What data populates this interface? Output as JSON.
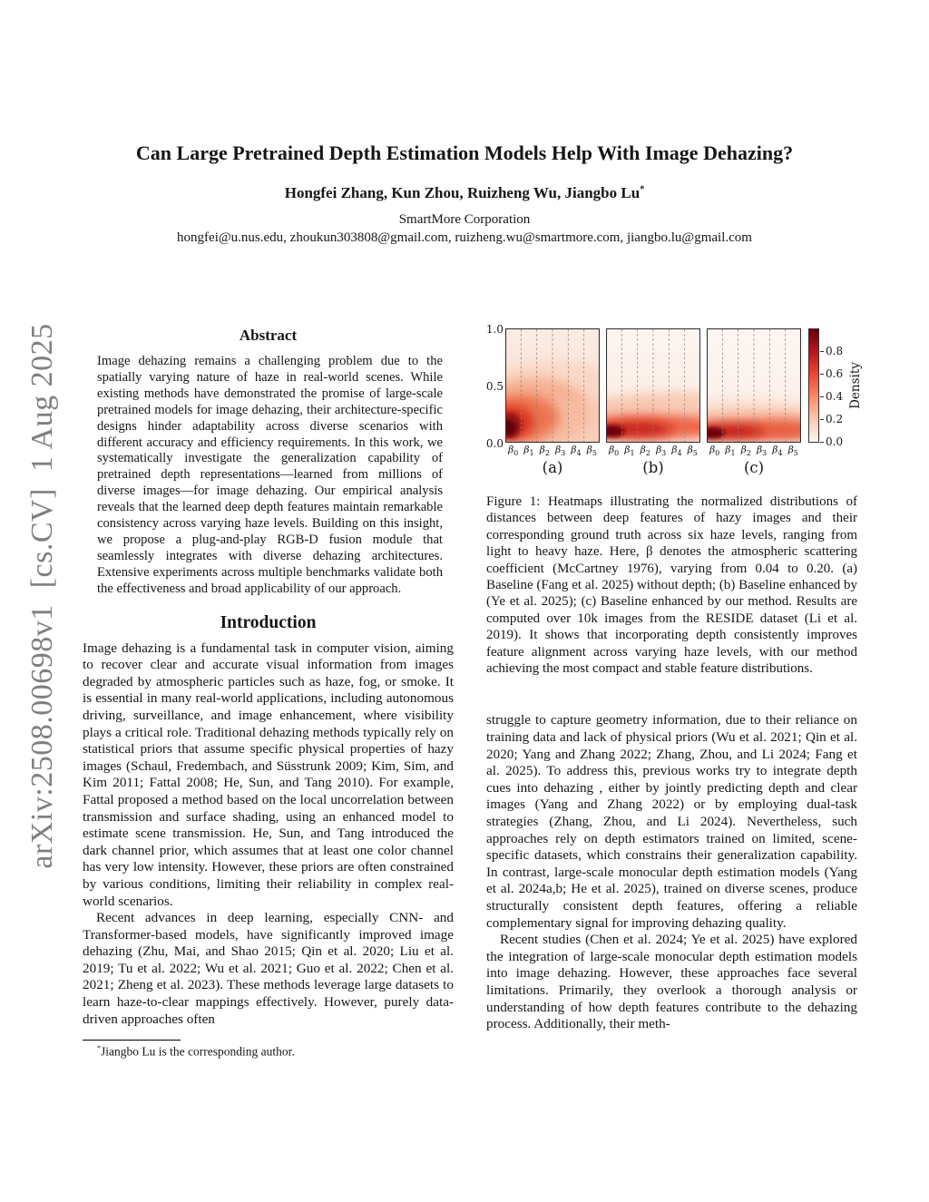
{
  "arxiv_stamp": "arXiv:2508.00698v1  [cs.CV]  1 Aug 2025",
  "header": {
    "title": "Can Large Pretrained Depth Estimation Models Help With Image Dehazing?",
    "authors": "Hongfei Zhang, Kun Zhou, Ruizheng Wu, Jiangbo Lu",
    "authors_mark": "*",
    "affiliation": "SmartMore Corporation",
    "emails": "hongfei@u.nus.edu, zhoukun303808@gmail.com, ruizheng.wu@smartmore.com, jiangbo.lu@gmail.com"
  },
  "abstract": {
    "heading": "Abstract",
    "text": "Image dehazing remains a challenging problem due to the spatially varying nature of haze in real-world scenes. While existing methods have demonstrated the promise of large-scale pretrained models for image dehazing, their architecture-specific designs hinder adaptability across diverse scenarios with different accuracy and efficiency requirements. In this work, we systematically investigate the generalization capability of pretrained depth representations—learned from millions of diverse images—for image dehazing. Our empirical analysis reveals that the learned deep depth features maintain remarkable consistency across varying haze levels. Building on this insight, we propose a plug-and-play RGB-D fusion module that seamlessly integrates with diverse dehazing architectures. Extensive experiments across multiple benchmarks validate both the effectiveness and broad applicability of our approach."
  },
  "introduction": {
    "heading": "Introduction",
    "paragraphs": [
      "Image dehazing is a fundamental task in computer vision, aiming to recover clear and accurate visual information from images degraded by atmospheric particles such as haze, fog, or smoke. It is essential in many real-world applications, including autonomous driving, surveillance, and image enhancement, where visibility plays a critical role. Traditional dehazing methods typically rely on statistical priors that assume specific physical properties of hazy images (Schaul, Fredembach, and Süsstrunk 2009; Kim, Sim, and Kim 2011; Fattal 2008; He, Sun, and Tang 2010). For example, Fattal proposed a method based on the local uncorrelation between transmission and surface shading, using an enhanced model to estimate scene transmission. He, Sun, and Tang introduced the dark channel prior, which assumes that at least one color channel has very low intensity. However, these priors are often constrained by various conditions, limiting their reliability in complex real-world scenarios.",
      "Recent advances in deep learning, especially CNN- and Transformer-based models, have significantly improved image dehazing (Zhu, Mai, and Shao 2015; Qin et al. 2020; Liu et al. 2019; Tu et al. 2022; Wu et al. 2021; Guo et al. 2022; Chen et al. 2021; Zheng et al. 2023). These methods leverage large datasets to learn haze-to-clear mappings effectively. However, purely data-driven approaches often"
    ]
  },
  "footnote": {
    "marker": "*",
    "text": "Jiangbo Lu is the corresponding author."
  },
  "figure": {
    "caption": "Figure 1: Heatmaps illustrating the normalized distributions of distances between deep features of hazy images and their corresponding ground truth across six haze levels, ranging from light to heavy haze. Here, β denotes the atmospheric scattering coefficient (McCartney 1976), varying from 0.04 to 0.20. (a) Baseline (Fang et al. 2025) without depth; (b) Baseline enhanced by (Ye et al. 2025); (c) Baseline enhanced by our method. Results are computed over 10k images from the RESIDE dataset (Li et al. 2019). It shows that incorporating depth consistently improves feature alignment across varying haze levels, with our method achieving the most compact and stable feature distributions."
  },
  "right_column": {
    "paragraphs": [
      "struggle to capture geometry information, due to their reliance on training data and lack of physical priors (Wu et al. 2021; Qin et al. 2020; Yang and Zhang 2022; Zhang, Zhou, and Li 2024; Fang et al. 2025). To address this, previous works try to integrate depth cues into dehazing , either by jointly predicting depth and clear images (Yang and Zhang 2022) or by employing dual-task strategies (Zhang, Zhou, and Li 2024). Nevertheless, such approaches rely on depth estimators trained on limited, scene-specific datasets, which constrains their generalization capability. In contrast, large-scale monocular depth estimation models (Yang et al. 2024a,b; He et al. 2025), trained on diverse scenes, produce structurally consistent depth features, offering a reliable complementary signal for improving dehazing quality.",
      "Recent studies (Chen et al. 2024; Ye et al. 2025) have explored the integration of large-scale monocular depth estimation models into image dehazing. However, these approaches face several limitations. Primarily, they overlook a thorough analysis or understanding of how depth features contribute to the dehazing process. Additionally, their meth-"
    ]
  },
  "chart_data": {
    "type": "heatmap",
    "title": "Normalized distributions of feature distances across six haze levels",
    "x_tick_prefix": "β",
    "x_tick_subs": [
      "0",
      "1",
      "2",
      "3",
      "4",
      "5"
    ],
    "y_ticks": [
      "1.0",
      "0.5",
      "0.0"
    ],
    "ylim": [
      0.0,
      1.0
    ],
    "grid": "dashed vertical separators between haze levels",
    "colorbar": {
      "label": "Density",
      "ticks": [
        "0.0",
        "0.2",
        "0.4",
        "0.6",
        "0.8"
      ],
      "range": [
        0.0,
        1.0
      ],
      "colormap": "Reds",
      "stops": [
        "#fff5f0",
        "#fdc9b4",
        "#fc8a6a",
        "#ef4533",
        "#bb151a",
        "#67000d"
      ]
    },
    "panels": [
      {
        "label": "(a)",
        "bg": [
          "#fbece4",
          "#f7ddd0"
        ],
        "blobs": [
          {
            "cx": 0.5,
            "cy": 0.3,
            "rx": 0.95,
            "ry": 0.42,
            "c": "#f9d6c4",
            "o": 0.9
          },
          {
            "cx": 0.3,
            "cy": 0.27,
            "rx": 0.6,
            "ry": 0.3,
            "c": "#f5a988",
            "o": 0.85
          },
          {
            "cx": 0.75,
            "cy": 0.18,
            "rx": 0.45,
            "ry": 0.22,
            "c": "#f7c5ab",
            "o": 0.55
          },
          {
            "cx": 0.17,
            "cy": 0.22,
            "rx": 0.4,
            "ry": 0.2,
            "c": "#ee6d48",
            "o": 0.9
          },
          {
            "cx": 0.08,
            "cy": 0.18,
            "rx": 0.22,
            "ry": 0.145,
            "c": "#d72f1f",
            "o": 0.95
          },
          {
            "cx": 0.05,
            "cy": 0.15,
            "rx": 0.125,
            "ry": 0.115,
            "c": "#941313",
            "o": 1,
            "core": true
          },
          {
            "cx": 0.035,
            "cy": 0.13,
            "rx": 0.075,
            "ry": 0.07,
            "c": "#5c000a",
            "o": 1,
            "core": true
          }
        ]
      },
      {
        "label": "(b)",
        "bg": [
          "#fdf5f1",
          "#faeae1"
        ],
        "blobs": [
          {
            "cx": 0.55,
            "cy": 0.23,
            "rx": 0.85,
            "ry": 0.2,
            "c": "#f8bda4",
            "o": 0.8
          },
          {
            "cx": 0.87,
            "cy": 0.27,
            "rx": 0.3,
            "ry": 0.17,
            "c": "#f9cdb8",
            "o": 0.75
          },
          {
            "cx": 0.52,
            "cy": 0.14,
            "rx": 0.82,
            "ry": 0.1,
            "c": "#ee5636",
            "o": 0.9
          },
          {
            "cx": 0.3,
            "cy": 0.115,
            "rx": 0.4,
            "ry": 0.065,
            "c": "#c01712",
            "o": 0.9
          },
          {
            "cx": 0.06,
            "cy": 0.1,
            "rx": 0.14,
            "ry": 0.055,
            "c": "#730008",
            "o": 1,
            "core": true
          }
        ]
      },
      {
        "label": "(c)",
        "bg": [
          "#fdf6f2",
          "#fbefe8"
        ],
        "blobs": [
          {
            "cx": 0.5,
            "cy": 0.28,
            "rx": 0.85,
            "ry": 0.13,
            "c": "#fbdfd2",
            "o": 0.7
          },
          {
            "cx": 0.52,
            "cy": 0.175,
            "rx": 0.88,
            "ry": 0.12,
            "c": "#f6b195",
            "o": 0.85
          },
          {
            "cx": 0.52,
            "cy": 0.105,
            "rx": 0.86,
            "ry": 0.07,
            "c": "#e23b22",
            "o": 0.92
          },
          {
            "cx": 0.8,
            "cy": 0.12,
            "rx": 0.35,
            "ry": 0.08,
            "c": "#ef6a44",
            "o": 0.6
          },
          {
            "cx": 0.25,
            "cy": 0.095,
            "rx": 0.35,
            "ry": 0.055,
            "c": "#bb150f",
            "o": 0.9
          },
          {
            "cx": 0.055,
            "cy": 0.085,
            "rx": 0.14,
            "ry": 0.05,
            "c": "#6e0007",
            "o": 1,
            "core": true
          }
        ]
      }
    ]
  }
}
